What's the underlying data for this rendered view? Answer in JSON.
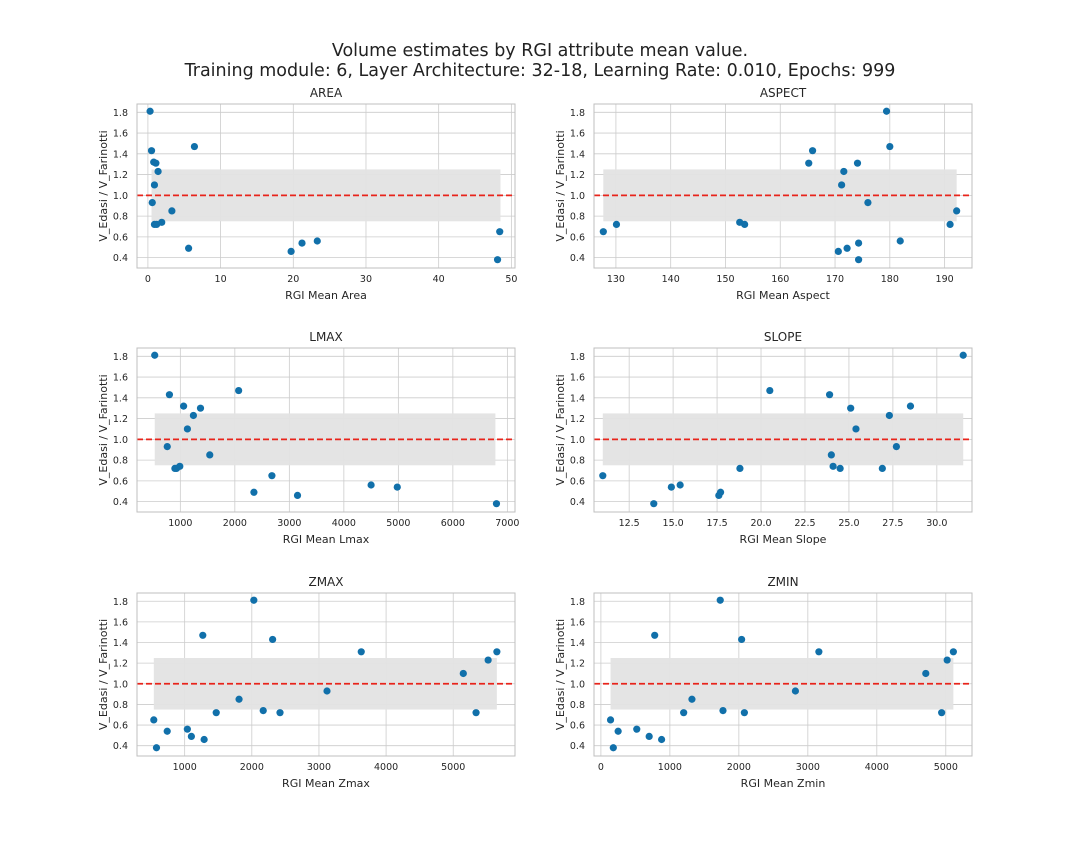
{
  "figure": {
    "title_line1": "Volume estimates by RGI attribute mean value.",
    "title_line2": "Training module: 6, Layer Architecture: 32-18, Learning Rate: 0.010, Epochs: 999"
  },
  "colors": {
    "points": "#1170aa",
    "reference_line": "#e8241b",
    "band": "#e3e3e3",
    "grid": "#cccccc",
    "frame": "#bfbfbf"
  },
  "chart_data": [
    {
      "type": "scatter",
      "title": "AREA",
      "xlabel": "RGI Mean Area",
      "ylabel": "V_Edasi / V_Farinotti",
      "xlim": [
        -1.5,
        50.5
      ],
      "ylim": [
        0.3,
        1.88
      ],
      "xticks": [
        0,
        10,
        20,
        30,
        40,
        50
      ],
      "xtick_labels": [
        "0",
        "10",
        "20",
        "30",
        "40",
        "50"
      ],
      "yticks": [
        0.4,
        0.6,
        0.8,
        1.0,
        1.2,
        1.4,
        1.6,
        1.8
      ],
      "ytick_labels": [
        "0.4",
        "0.6",
        "0.8",
        "1.0",
        "1.2",
        "1.4",
        "1.6",
        "1.8"
      ],
      "grid": true,
      "reference_y": 1.0,
      "band": {
        "x": [
          0.5,
          48.5
        ],
        "y": [
          0.75,
          1.25
        ]
      },
      "points": [
        {
          "x": 0.3,
          "y": 1.81
        },
        {
          "x": 0.5,
          "y": 1.43
        },
        {
          "x": 0.6,
          "y": 0.93
        },
        {
          "x": 0.8,
          "y": 1.32
        },
        {
          "x": 0.9,
          "y": 1.1
        },
        {
          "x": 0.9,
          "y": 0.72
        },
        {
          "x": 1.1,
          "y": 1.31
        },
        {
          "x": 1.2,
          "y": 0.72
        },
        {
          "x": 1.4,
          "y": 1.23
        },
        {
          "x": 1.9,
          "y": 0.74
        },
        {
          "x": 3.3,
          "y": 0.85
        },
        {
          "x": 5.6,
          "y": 0.49
        },
        {
          "x": 6.4,
          "y": 1.47
        },
        {
          "x": 19.7,
          "y": 0.46
        },
        {
          "x": 21.2,
          "y": 0.54
        },
        {
          "x": 23.3,
          "y": 0.56
        },
        {
          "x": 48.1,
          "y": 0.38
        },
        {
          "x": 48.4,
          "y": 0.65
        }
      ]
    },
    {
      "type": "scatter",
      "title": "ASPECT",
      "xlabel": "RGI Mean Aspect",
      "ylabel": "V_Edasi / V_Farinotti",
      "xlim": [
        126,
        195
      ],
      "ylim": [
        0.3,
        1.88
      ],
      "xticks": [
        130,
        140,
        150,
        160,
        170,
        180,
        190
      ],
      "xtick_labels": [
        "130",
        "140",
        "150",
        "160",
        "170",
        "180",
        "190"
      ],
      "yticks": [
        0.4,
        0.6,
        0.8,
        1.0,
        1.2,
        1.4,
        1.6,
        1.8
      ],
      "ytick_labels": [
        "0.4",
        "0.6",
        "0.8",
        "1.0",
        "1.2",
        "1.4",
        "1.6",
        "1.8"
      ],
      "grid": true,
      "reference_y": 1.0,
      "band": {
        "x": [
          127.7,
          192.2
        ],
        "y": [
          0.75,
          1.25
        ]
      },
      "points": [
        {
          "x": 127.7,
          "y": 0.65
        },
        {
          "x": 130.1,
          "y": 0.72
        },
        {
          "x": 152.6,
          "y": 0.74
        },
        {
          "x": 153.5,
          "y": 0.72
        },
        {
          "x": 165.2,
          "y": 1.31
        },
        {
          "x": 165.9,
          "y": 1.43
        },
        {
          "x": 170.6,
          "y": 0.46
        },
        {
          "x": 171.2,
          "y": 1.1
        },
        {
          "x": 171.6,
          "y": 1.23
        },
        {
          "x": 172.2,
          "y": 0.49
        },
        {
          "x": 174.1,
          "y": 1.31
        },
        {
          "x": 174.3,
          "y": 0.54
        },
        {
          "x": 174.3,
          "y": 0.38
        },
        {
          "x": 176.0,
          "y": 0.93
        },
        {
          "x": 179.4,
          "y": 1.81
        },
        {
          "x": 180.0,
          "y": 1.47
        },
        {
          "x": 181.9,
          "y": 0.56
        },
        {
          "x": 191.0,
          "y": 0.72
        },
        {
          "x": 192.2,
          "y": 0.85
        }
      ]
    },
    {
      "type": "scatter",
      "title": "LMAX",
      "xlabel": "RGI Mean Lmax",
      "ylabel": "V_Edasi / V_Farinotti",
      "xlim": [
        205,
        7140
      ],
      "ylim": [
        0.3,
        1.88
      ],
      "xticks": [
        1000,
        2000,
        3000,
        4000,
        5000,
        6000,
        7000
      ],
      "xtick_labels": [
        "1000",
        "2000",
        "3000",
        "4000",
        "5000",
        "6000",
        "7000"
      ],
      "yticks": [
        0.4,
        0.6,
        0.8,
        1.0,
        1.2,
        1.4,
        1.6,
        1.8
      ],
      "ytick_labels": [
        "0.4",
        "0.6",
        "0.8",
        "1.0",
        "1.2",
        "1.4",
        "1.6",
        "1.8"
      ],
      "grid": true,
      "reference_y": 1.0,
      "band": {
        "x": [
          530,
          6780
        ],
        "y": [
          0.75,
          1.25
        ]
      },
      "points": [
        {
          "x": 530,
          "y": 1.81
        },
        {
          "x": 760,
          "y": 0.93
        },
        {
          "x": 800,
          "y": 1.43
        },
        {
          "x": 900,
          "y": 0.72
        },
        {
          "x": 930,
          "y": 0.72
        },
        {
          "x": 990,
          "y": 0.74
        },
        {
          "x": 1060,
          "y": 1.32
        },
        {
          "x": 1130,
          "y": 1.1
        },
        {
          "x": 1240,
          "y": 1.23
        },
        {
          "x": 1370,
          "y": 1.3
        },
        {
          "x": 1540,
          "y": 0.85
        },
        {
          "x": 2070,
          "y": 1.47
        },
        {
          "x": 2350,
          "y": 0.49
        },
        {
          "x": 2680,
          "y": 0.65
        },
        {
          "x": 3150,
          "y": 0.46
        },
        {
          "x": 4500,
          "y": 0.56
        },
        {
          "x": 4980,
          "y": 0.54
        },
        {
          "x": 6800,
          "y": 0.38
        }
      ]
    },
    {
      "type": "scatter",
      "title": "SLOPE",
      "xlabel": "RGI Mean Slope",
      "ylabel": "V_Edasi / V_Farinotti",
      "xlim": [
        10.5,
        32.0
      ],
      "ylim": [
        0.3,
        1.88
      ],
      "xticks": [
        12.5,
        15.0,
        17.5,
        20.0,
        22.5,
        25.0,
        27.5,
        30.0
      ],
      "xtick_labels": [
        "12.5",
        "15.0",
        "17.5",
        "20.0",
        "22.5",
        "25.0",
        "27.5",
        "30.0"
      ],
      "yticks": [
        0.4,
        0.6,
        0.8,
        1.0,
        1.2,
        1.4,
        1.6,
        1.8
      ],
      "ytick_labels": [
        "0.4",
        "0.6",
        "0.8",
        "1.0",
        "1.2",
        "1.4",
        "1.6",
        "1.8"
      ],
      "grid": true,
      "reference_y": 1.0,
      "band": {
        "x": [
          11.0,
          31.5
        ],
        "y": [
          0.75,
          1.25
        ]
      },
      "points": [
        {
          "x": 11.0,
          "y": 0.65
        },
        {
          "x": 13.9,
          "y": 0.38
        },
        {
          "x": 14.9,
          "y": 0.54
        },
        {
          "x": 15.4,
          "y": 0.56
        },
        {
          "x": 17.6,
          "y": 0.46
        },
        {
          "x": 17.7,
          "y": 0.49
        },
        {
          "x": 18.8,
          "y": 0.72
        },
        {
          "x": 20.5,
          "y": 1.47
        },
        {
          "x": 23.9,
          "y": 1.43
        },
        {
          "x": 24.0,
          "y": 0.85
        },
        {
          "x": 24.1,
          "y": 0.74
        },
        {
          "x": 24.5,
          "y": 0.72
        },
        {
          "x": 25.1,
          "y": 1.3
        },
        {
          "x": 25.4,
          "y": 1.1
        },
        {
          "x": 26.9,
          "y": 0.72
        },
        {
          "x": 27.3,
          "y": 1.23
        },
        {
          "x": 27.7,
          "y": 0.93
        },
        {
          "x": 28.5,
          "y": 1.32
        },
        {
          "x": 31.5,
          "y": 1.81
        }
      ]
    },
    {
      "type": "scatter",
      "title": "ZMAX",
      "xlabel": "RGI Mean Zmax",
      "ylabel": "V_Edasi / V_Farinotti",
      "xlim": [
        290,
        5920
      ],
      "ylim": [
        0.3,
        1.88
      ],
      "xticks": [
        1000,
        2000,
        3000,
        4000,
        5000
      ],
      "xtick_labels": [
        "1000",
        "2000",
        "3000",
        "4000",
        "5000"
      ],
      "yticks": [
        0.4,
        0.6,
        0.8,
        1.0,
        1.2,
        1.4,
        1.6,
        1.8
      ],
      "ytick_labels": [
        "0.4",
        "0.6",
        "0.8",
        "1.0",
        "1.2",
        "1.4",
        "1.6",
        "1.8"
      ],
      "grid": true,
      "reference_y": 1.0,
      "band": {
        "x": [
          540,
          5650
        ],
        "y": [
          0.75,
          1.25
        ]
      },
      "points": [
        {
          "x": 540,
          "y": 0.65
        },
        {
          "x": 580,
          "y": 0.38
        },
        {
          "x": 740,
          "y": 0.54
        },
        {
          "x": 1040,
          "y": 0.56
        },
        {
          "x": 1100,
          "y": 0.49
        },
        {
          "x": 1270,
          "y": 1.47
        },
        {
          "x": 1290,
          "y": 0.46
        },
        {
          "x": 1470,
          "y": 0.72
        },
        {
          "x": 1810,
          "y": 0.85
        },
        {
          "x": 2030,
          "y": 1.81
        },
        {
          "x": 2170,
          "y": 0.74
        },
        {
          "x": 2310,
          "y": 1.43
        },
        {
          "x": 2420,
          "y": 0.72
        },
        {
          "x": 3120,
          "y": 0.93
        },
        {
          "x": 3630,
          "y": 1.31
        },
        {
          "x": 5150,
          "y": 1.1
        },
        {
          "x": 5340,
          "y": 0.72
        },
        {
          "x": 5520,
          "y": 1.23
        },
        {
          "x": 5650,
          "y": 1.31
        }
      ]
    },
    {
      "type": "scatter",
      "title": "ZMIN",
      "xlabel": "RGI Mean Zmin",
      "ylabel": "V_Edasi / V_Farinotti",
      "xlim": [
        -100,
        5380
      ],
      "ylim": [
        0.3,
        1.88
      ],
      "xticks": [
        0,
        1000,
        2000,
        3000,
        4000,
        5000
      ],
      "xtick_labels": [
        "0",
        "1000",
        "2000",
        "3000",
        "4000",
        "5000"
      ],
      "yticks": [
        0.4,
        0.6,
        0.8,
        1.0,
        1.2,
        1.4,
        1.6,
        1.8
      ],
      "ytick_labels": [
        "0.4",
        "0.6",
        "0.8",
        "1.0",
        "1.2",
        "1.4",
        "1.6",
        "1.8"
      ],
      "grid": true,
      "reference_y": 1.0,
      "band": {
        "x": [
          140,
          5110
        ],
        "y": [
          0.75,
          1.25
        ]
      },
      "points": [
        {
          "x": 140,
          "y": 0.65
        },
        {
          "x": 180,
          "y": 0.38
        },
        {
          "x": 250,
          "y": 0.54
        },
        {
          "x": 520,
          "y": 0.56
        },
        {
          "x": 700,
          "y": 0.49
        },
        {
          "x": 780,
          "y": 1.47
        },
        {
          "x": 880,
          "y": 0.46
        },
        {
          "x": 1200,
          "y": 0.72
        },
        {
          "x": 1320,
          "y": 0.85
        },
        {
          "x": 1730,
          "y": 1.81
        },
        {
          "x": 1770,
          "y": 0.74
        },
        {
          "x": 2040,
          "y": 1.43
        },
        {
          "x": 2080,
          "y": 0.72
        },
        {
          "x": 2820,
          "y": 0.93
        },
        {
          "x": 3160,
          "y": 1.31
        },
        {
          "x": 4710,
          "y": 1.1
        },
        {
          "x": 4940,
          "y": 0.72
        },
        {
          "x": 5020,
          "y": 1.23
        },
        {
          "x": 5110,
          "y": 1.31
        }
      ]
    }
  ]
}
